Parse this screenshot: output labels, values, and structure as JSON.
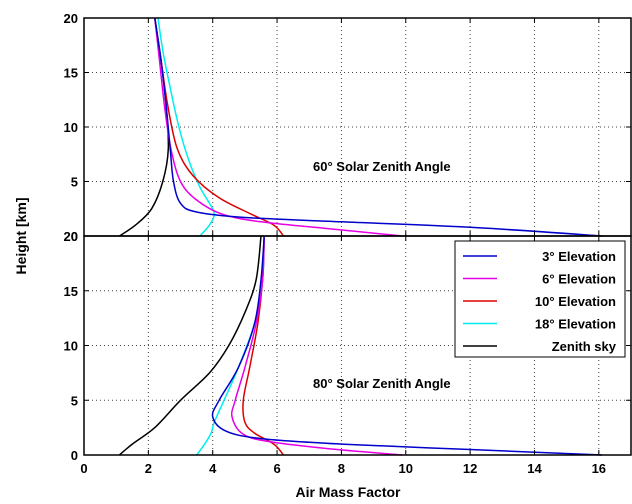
{
  "chart_data": {
    "type": "line",
    "xlabel": "Air Mass Factor",
    "ylabel": "Height [km]",
    "xlim": [
      0,
      17
    ],
    "x_ticks": [
      0,
      2,
      4,
      6,
      8,
      10,
      12,
      14,
      16
    ],
    "y_ticks": [
      0,
      5,
      10,
      15,
      20
    ],
    "grid": true,
    "legend_position": "top-right",
    "legend_panel": "bottom",
    "legend": [
      {
        "name": "3° Elevation",
        "color": "#0000cc"
      },
      {
        "name": "6° Elevation",
        "color": "#e600e6"
      },
      {
        "name": "10° Elevation",
        "color": "#dd0000"
      },
      {
        "name": "18° Elevation",
        "color": "#00eeee"
      },
      {
        "name": "Zenith sky",
        "color": "#000000"
      }
    ],
    "panels": [
      {
        "annotation": "60° Solar Zenith Angle",
        "ylim": [
          0,
          20
        ],
        "series": [
          {
            "name": "Zenith sky",
            "color": "#000000",
            "points": [
              [
                1.1,
                0
              ],
              [
                1.6,
                1
              ],
              [
                2.1,
                2.5
              ],
              [
                2.45,
                5
              ],
              [
                2.62,
                8
              ],
              [
                2.55,
                12
              ],
              [
                2.4,
                16
              ],
              [
                2.2,
                20
              ]
            ]
          },
          {
            "name": "18° Elevation",
            "color": "#00eeee",
            "points": [
              [
                3.6,
                0
              ],
              [
                3.9,
                1
              ],
              [
                4.05,
                2
              ],
              [
                3.9,
                3
              ],
              [
                3.6,
                4.5
              ],
              [
                3.25,
                7
              ],
              [
                2.95,
                10
              ],
              [
                2.65,
                14
              ],
              [
                2.45,
                17
              ],
              [
                2.3,
                20
              ]
            ]
          },
          {
            "name": "10° Elevation",
            "color": "#dd0000",
            "points": [
              [
                6.2,
                0
              ],
              [
                5.9,
                1
              ],
              [
                5.2,
                2
              ],
              [
                4.2,
                3.5
              ],
              [
                3.4,
                5.5
              ],
              [
                2.9,
                8
              ],
              [
                2.6,
                12
              ],
              [
                2.4,
                16
              ],
              [
                2.2,
                20
              ]
            ]
          },
          {
            "name": "6° Elevation",
            "color": "#e600e6",
            "points": [
              [
                9.9,
                0
              ],
              [
                7.5,
                0.7
              ],
              [
                5.5,
                1.3
              ],
              [
                4.3,
                2
              ],
              [
                3.5,
                3.3
              ],
              [
                3.0,
                5
              ],
              [
                2.7,
                8
              ],
              [
                2.5,
                12
              ],
              [
                2.35,
                16
              ],
              [
                2.2,
                20
              ]
            ]
          },
          {
            "name": "3° Elevation",
            "color": "#0000cc",
            "points": [
              [
                16.1,
                0
              ],
              [
                12,
                0.8
              ],
              [
                8,
                1.3
              ],
              [
                5,
                1.7
              ],
              [
                3.5,
                2.2
              ],
              [
                3.0,
                3
              ],
              [
                2.78,
                5
              ],
              [
                2.68,
                8
              ],
              [
                2.55,
                12
              ],
              [
                2.4,
                16
              ],
              [
                2.2,
                20
              ]
            ]
          }
        ]
      },
      {
        "annotation": "80° Solar Zenith Angle",
        "ylim": [
          0,
          20
        ],
        "series": [
          {
            "name": "Zenith sky",
            "color": "#000000",
            "points": [
              [
                1.1,
                0
              ],
              [
                1.5,
                1
              ],
              [
                2.2,
                2.5
              ],
              [
                3.0,
                5
              ],
              [
                3.9,
                7.5
              ],
              [
                4.5,
                10
              ],
              [
                5.0,
                13
              ],
              [
                5.35,
                16
              ],
              [
                5.5,
                20
              ]
            ]
          },
          {
            "name": "18° Elevation",
            "color": "#00eeee",
            "points": [
              [
                3.5,
                0
              ],
              [
                3.75,
                1
              ],
              [
                3.95,
                2
              ],
              [
                4.05,
                3
              ],
              [
                4.35,
                5
              ],
              [
                4.8,
                8
              ],
              [
                5.3,
                12
              ],
              [
                5.55,
                16
              ],
              [
                5.6,
                20
              ]
            ]
          },
          {
            "name": "10° Elevation",
            "color": "#dd0000",
            "points": [
              [
                6.2,
                0
              ],
              [
                5.9,
                1
              ],
              [
                5.3,
                2
              ],
              [
                5.0,
                3
              ],
              [
                4.95,
                5
              ],
              [
                5.15,
                8
              ],
              [
                5.4,
                12
              ],
              [
                5.55,
                16
              ],
              [
                5.6,
                20
              ]
            ]
          },
          {
            "name": "6° Elevation",
            "color": "#e600e6",
            "points": [
              [
                9.9,
                0
              ],
              [
                7.5,
                0.6
              ],
              [
                5.6,
                1.3
              ],
              [
                4.9,
                2
              ],
              [
                4.6,
                3.5
              ],
              [
                4.7,
                5
              ],
              [
                5.0,
                8
              ],
              [
                5.35,
                12
              ],
              [
                5.55,
                16
              ],
              [
                5.6,
                20
              ]
            ]
          },
          {
            "name": "3° Elevation",
            "color": "#0000cc",
            "points": [
              [
                16.1,
                0
              ],
              [
                12,
                0.5
              ],
              [
                8,
                1.0
              ],
              [
                5.5,
                1.5
              ],
              [
                4.4,
                2.2
              ],
              [
                4.0,
                3.5
              ],
              [
                4.2,
                5
              ],
              [
                4.8,
                8
              ],
              [
                5.3,
                12
              ],
              [
                5.5,
                16
              ],
              [
                5.6,
                20
              ]
            ]
          }
        ]
      }
    ]
  }
}
